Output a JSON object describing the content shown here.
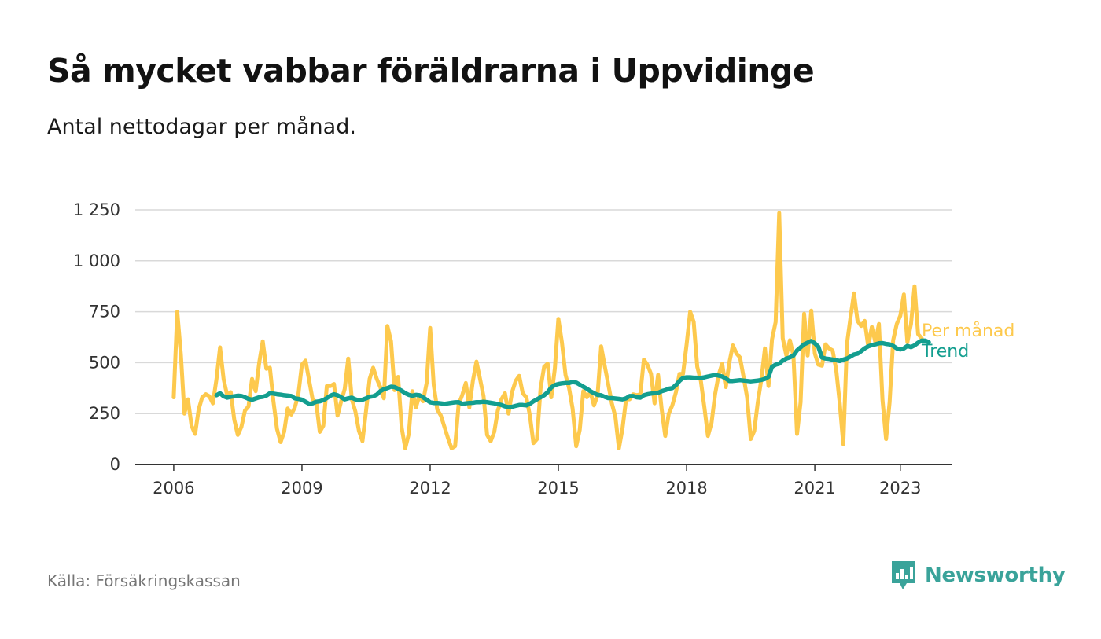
{
  "header": {
    "title": "Så mycket vabbar föräldrarna i Uppvidinge",
    "subtitle": "Antal nettodagar per månad."
  },
  "footer": {
    "source": "Källa: Försäkringskassan",
    "brand": "Newsworthy"
  },
  "colors": {
    "monthly": "#fdc94d",
    "trend": "#139e8f",
    "grid": "#d9d9d9",
    "axis": "#333333",
    "brand": "#3aa39a"
  },
  "chart_data": {
    "type": "line",
    "title": "Så mycket vabbar föräldrarna i Uppvidinge",
    "subtitle": "Antal nettodagar per månad.",
    "xlabel": "",
    "ylabel": "",
    "ylim": [
      0,
      1250
    ],
    "xlim": [
      2005.1,
      2024.2
    ],
    "y_ticks": [
      {
        "value": 0,
        "label": "0"
      },
      {
        "value": 250,
        "label": "250"
      },
      {
        "value": 500,
        "label": "500"
      },
      {
        "value": 750,
        "label": "750"
      },
      {
        "value": 1000,
        "label": "1 000"
      },
      {
        "value": 1250,
        "label": "1 250"
      }
    ],
    "x_ticks": [
      {
        "value": 2006,
        "label": "2006"
      },
      {
        "value": 2009,
        "label": "2009"
      },
      {
        "value": 2012,
        "label": "2012"
      },
      {
        "value": 2015,
        "label": "2015"
      },
      {
        "value": 2018,
        "label": "2018"
      },
      {
        "value": 2021,
        "label": "2021"
      },
      {
        "value": 2023,
        "label": "2023"
      }
    ],
    "grid": true,
    "legend": "inline-right",
    "series": [
      {
        "name": "Per månad",
        "start": "2006-01",
        "values": [
          330,
          750,
          540,
          250,
          320,
          190,
          150,
          270,
          330,
          345,
          335,
          300,
          420,
          575,
          420,
          340,
          355,
          220,
          145,
          185,
          265,
          285,
          420,
          360,
          500,
          605,
          470,
          475,
          310,
          175,
          110,
          160,
          275,
          245,
          280,
          345,
          490,
          510,
          415,
          320,
          305,
          160,
          190,
          385,
          385,
          395,
          240,
          310,
          370,
          520,
          320,
          260,
          165,
          115,
          265,
          420,
          475,
          420,
          380,
          325,
          680,
          605,
          365,
          430,
          180,
          80,
          150,
          360,
          280,
          340,
          310,
          400,
          670,
          390,
          270,
          240,
          185,
          130,
          80,
          90,
          295,
          340,
          400,
          280,
          410,
          505,
          420,
          335,
          145,
          115,
          160,
          265,
          320,
          350,
          250,
          355,
          410,
          435,
          350,
          330,
          240,
          105,
          125,
          375,
          480,
          495,
          330,
          470,
          715,
          600,
          440,
          375,
          275,
          90,
          170,
          360,
          330,
          355,
          290,
          340,
          580,
          485,
          395,
          300,
          235,
          80,
          175,
          320,
          320,
          345,
          340,
          345,
          515,
          490,
          445,
          300,
          440,
          270,
          140,
          250,
          290,
          355,
          445,
          445,
          590,
          750,
          700,
          480,
          410,
          280,
          140,
          205,
          345,
          440,
          495,
          380,
          500,
          585,
          545,
          525,
          430,
          330,
          125,
          165,
          305,
          420,
          570,
          385,
          615,
          700,
          1235,
          620,
          535,
          610,
          535,
          150,
          305,
          740,
          535,
          755,
          545,
          490,
          485,
          590,
          570,
          560,
          465,
          300,
          100,
          590,
          720,
          840,
          705,
          680,
          705,
          580,
          675,
          600,
          690,
          320,
          125,
          305,
          610,
          690,
          730,
          835,
          600,
          690,
          875,
          640,
          620
        ]
      },
      {
        "name": "Trend",
        "start": "2007-01",
        "values": [
          340,
          350,
          335,
          328,
          332,
          335,
          338,
          336,
          330,
          322,
          318,
          324,
          330,
          332,
          338,
          350,
          348,
          345,
          343,
          340,
          338,
          336,
          325,
          322,
          318,
          308,
          298,
          300,
          308,
          310,
          316,
          326,
          338,
          345,
          340,
          330,
          320,
          325,
          328,
          320,
          315,
          318,
          325,
          332,
          335,
          343,
          360,
          370,
          375,
          382,
          380,
          372,
          362,
          350,
          342,
          338,
          342,
          340,
          330,
          318,
          305,
          302,
          302,
          300,
          298,
          300,
          303,
          305,
          306,
          298,
          300,
          302,
          303,
          306,
          306,
          308,
          306,
          303,
          300,
          296,
          292,
          285,
          282,
          283,
          288,
          292,
          292,
          290,
          298,
          310,
          320,
          330,
          340,
          355,
          378,
          390,
          395,
          398,
          400,
          400,
          405,
          402,
          392,
          382,
          372,
          360,
          350,
          342,
          340,
          332,
          326,
          326,
          324,
          322,
          320,
          325,
          336,
          336,
          330,
          328,
          340,
          345,
          348,
          350,
          352,
          360,
          365,
          372,
          375,
          390,
          410,
          425,
          428,
          428,
          426,
          426,
          425,
          428,
          432,
          436,
          440,
          436,
          432,
          422,
          410,
          410,
          412,
          414,
          412,
          410,
          408,
          410,
          412,
          415,
          420,
          430,
          480,
          490,
          495,
          510,
          520,
          526,
          535,
          560,
          575,
          590,
          598,
          606,
          595,
          578,
          525,
          520,
          518,
          515,
          512,
          508,
          515,
          520,
          530,
          540,
          544,
          556,
          570,
          580,
          586,
          590,
          595,
          596,
          592,
          590,
          582,
          570,
          565,
          570,
          582,
          576,
          585,
          598,
          608,
          608,
          600
        ]
      }
    ]
  }
}
